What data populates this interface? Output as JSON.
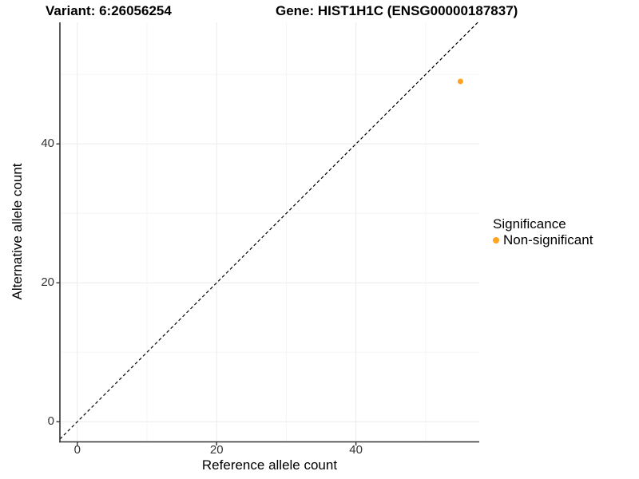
{
  "titles": {
    "variant": "Variant: 6:26056254",
    "gene": "Gene: HIST1H1C (ENSG00000187837)"
  },
  "chart_data": {
    "type": "scatter",
    "xlabel": "Reference allele count",
    "ylabel": "Alternative allele count",
    "x_ticks": [
      0,
      20,
      40
    ],
    "y_ticks": [
      0,
      20,
      40
    ],
    "x_minor": [
      10,
      30,
      50
    ],
    "y_minor": [
      10,
      30,
      50
    ],
    "xlim": [
      -2.5,
      57.7
    ],
    "ylim": [
      -2.9,
      57.5
    ],
    "grid": true,
    "identity_line": {
      "style": "dashed",
      "color": "#000000"
    },
    "points": [
      {
        "x": 55,
        "y": 49,
        "series": "Non-significant"
      }
    ],
    "legend": {
      "title": "Significance",
      "position": "right",
      "items": [
        {
          "label": "Non-significant",
          "color": "#FFA320"
        }
      ]
    },
    "colors": {
      "grid_major": "#EBEBEB",
      "grid_minor": "#F5F5F5",
      "axis": "#333333",
      "tick_label": "#333333"
    }
  }
}
